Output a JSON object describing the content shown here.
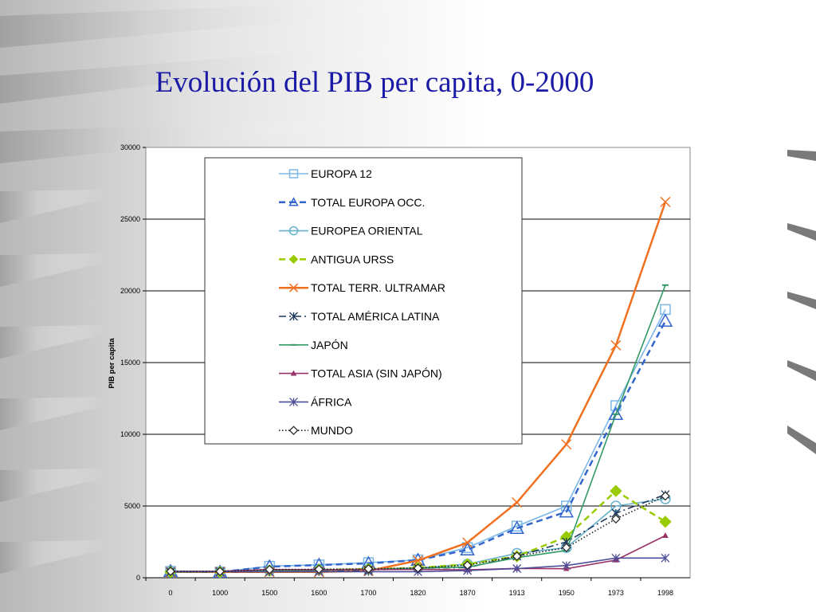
{
  "slide": {
    "title": "Evolución del PIB per capita, 0-2000"
  },
  "chart_data": {
    "type": "line",
    "title": "",
    "xlabel": "",
    "ylabel": "PIB per capita",
    "ylim": [
      0,
      30000
    ],
    "yticks": [
      0,
      5000,
      10000,
      15000,
      20000,
      25000,
      30000
    ],
    "grid": true,
    "legend_position": "upper-left",
    "categories": [
      "0",
      "1000",
      "1500",
      "1600",
      "1700",
      "1820",
      "1870",
      "1913",
      "1950",
      "1973",
      "1998"
    ],
    "series": [
      {
        "name": "EUROPA 12",
        "color": "#7ab8e8",
        "dash": "solid",
        "marker": "square",
        "values": [
          450,
          400,
          800,
          900,
          1050,
          1250,
          2100,
          3600,
          5000,
          12000,
          18700
        ]
      },
      {
        "name": "TOTAL EUROPA OCC.",
        "color": "#3366cc",
        "dash": "dashed",
        "marker": "triangle",
        "values": [
          450,
          400,
          770,
          890,
          1000,
          1230,
          1950,
          3450,
          4600,
          11400,
          17900
        ]
      },
      {
        "name": "EUROPEA ORIENTAL",
        "color": "#66b2cc",
        "dash": "solid",
        "marker": "circle",
        "values": [
          400,
          400,
          500,
          550,
          600,
          680,
          950,
          1700,
          2100,
          5000,
          5500
        ]
      },
      {
        "name": "ANTIGUA URSS",
        "color": "#99cc00",
        "dash": "dashed",
        "marker": "diamond-filled",
        "values": [
          400,
          400,
          500,
          550,
          600,
          690,
          940,
          1500,
          2850,
          6050,
          3900
        ]
      },
      {
        "name": "TOTAL TERR. ULTRAMAR",
        "color": "#f07020",
        "dash": "solid",
        "marker": "x",
        "values": [
          400,
          400,
          400,
          400,
          480,
          1200,
          2450,
          5250,
          9300,
          16200,
          26200
        ]
      },
      {
        "name": "TOTAL AMÉRICA LATINA",
        "color": "#1f3a5f",
        "dash": "dashdot",
        "marker": "star",
        "values": [
          400,
          400,
          420,
          440,
          530,
          670,
          700,
          1500,
          2500,
          4500,
          5800
        ]
      },
      {
        "name": "JAPÓN",
        "color": "#339966",
        "dash": "solid",
        "marker": "dash",
        "values": [
          400,
          430,
          500,
          520,
          570,
          670,
          740,
          1400,
          1900,
          11400,
          20400
        ]
      },
      {
        "name": "TOTAL ASIA (SIN JAPÓN)",
        "color": "#993366",
        "dash": "solid",
        "marker": "triangle-filled",
        "values": [
          450,
          450,
          570,
          560,
          570,
          580,
          550,
          650,
          630,
          1230,
          2940
        ]
      },
      {
        "name": "ÁFRICA",
        "color": "#4d4d99",
        "dash": "solid",
        "marker": "star",
        "values": [
          430,
          430,
          410,
          420,
          420,
          420,
          500,
          640,
          850,
          1370,
          1370
        ]
      },
      {
        "name": "MUNDO",
        "color": "#222222",
        "dash": "dotted",
        "marker": "diamond",
        "values": [
          450,
          440,
          570,
          590,
          620,
          670,
          870,
          1500,
          2100,
          4100,
          5700
        ]
      }
    ]
  }
}
